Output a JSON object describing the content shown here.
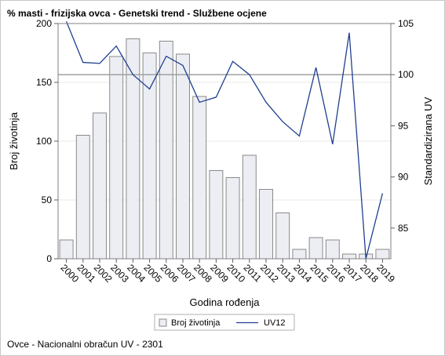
{
  "title": "% masti - frizijska ovca - Genetski trend - Službene ocjene",
  "footnote": "Ovce - Nacionalni obračun UV - 2301",
  "chart_data": {
    "type": "bar",
    "categories": [
      "2000",
      "2001",
      "2002",
      "2003",
      "2004",
      "2005",
      "2006",
      "2007",
      "2008",
      "2009",
      "2010",
      "2011",
      "2012",
      "2013",
      "2014",
      "2015",
      "2016",
      "2017",
      "2018",
      "2019"
    ],
    "series": [
      {
        "name": "Broj životinja",
        "type": "bar",
        "axis": "left",
        "color": "#eceef4",
        "values": [
          16,
          105,
          124,
          172,
          187,
          175,
          185,
          174,
          138,
          75,
          69,
          88,
          59,
          39,
          8,
          18,
          16,
          4,
          4,
          8
        ]
      },
      {
        "name": "UV12",
        "type": "line",
        "axis": "right",
        "color": "#1f3f8f",
        "values": [
          105.2,
          101.2,
          101.1,
          102.8,
          100.0,
          98.6,
          101.8,
          100.9,
          97.3,
          97.8,
          101.3,
          100.0,
          97.3,
          95.4,
          94.0,
          100.7,
          93.2,
          104.1,
          82.0,
          88.4
        ]
      }
    ],
    "xlabel": "Godina rođenja",
    "ylabel": "Broj životinja",
    "y2label": "Standardizirana UV",
    "ylim": [
      0,
      200
    ],
    "y2lim": [
      82,
      105
    ],
    "yticks": [
      0,
      50,
      100,
      150,
      200
    ],
    "y2ticks": [
      85,
      90,
      95,
      100,
      105
    ],
    "reference_line_y2": 100,
    "grid": true,
    "legend_position": "bottom"
  }
}
